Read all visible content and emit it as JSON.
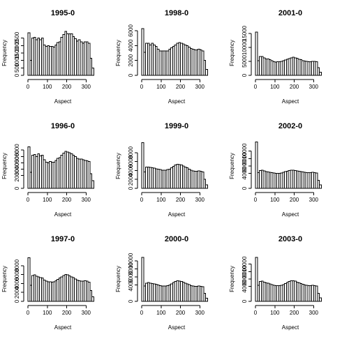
{
  "chart_data": [
    {
      "type": "bar",
      "title": "1995-0",
      "xlabel": "Aspect",
      "ylabel": "Frequency",
      "bin_width": 10,
      "xlim": [
        0,
        360
      ],
      "xticks": [
        0,
        100,
        200,
        300
      ],
      "ylim": [
        0,
        3000
      ],
      "yticks": [
        0,
        500,
        1000,
        1500,
        2000,
        2500
      ],
      "values": [
        2850,
        1000,
        2500,
        2550,
        2400,
        2500,
        2400,
        2500,
        2050,
        1950,
        2000,
        1950,
        1950,
        1900,
        2050,
        2200,
        2250,
        2550,
        2750,
        2950,
        2800,
        2800,
        2800,
        2600,
        2450,
        2300,
        2400,
        2250,
        2150,
        2250,
        2250,
        2150,
        1150,
        500
      ]
    },
    {
      "type": "bar",
      "title": "1998-0",
      "xlabel": "Aspect",
      "ylabel": "Frequency",
      "bin_width": 10,
      "xlim": [
        0,
        360
      ],
      "xticks": [
        0,
        100,
        200,
        300
      ],
      "ylim": [
        0,
        6000
      ],
      "yticks": [
        0,
        2000,
        4000,
        6000
      ],
      "values": [
        6300,
        3100,
        4300,
        4300,
        4100,
        4300,
        4100,
        3900,
        3500,
        3300,
        3300,
        3300,
        3300,
        3300,
        3500,
        3700,
        3900,
        4100,
        4300,
        4400,
        4300,
        4200,
        4100,
        4000,
        3800,
        3600,
        3500,
        3400,
        3400,
        3500,
        3400,
        3300,
        2000,
        800
      ]
    },
    {
      "type": "bar",
      "title": "2001-0",
      "xlabel": "Aspect",
      "ylabel": "Frequency",
      "bin_width": 10,
      "xlim": [
        0,
        360
      ],
      "xticks": [
        0,
        100,
        200,
        300
      ],
      "ylim": [
        0,
        16000
      ],
      "yticks": [
        0,
        5000,
        10000,
        15000
      ],
      "values": [
        15500,
        5200,
        6800,
        6700,
        6300,
        5900,
        5900,
        5600,
        5200,
        4900,
        4800,
        4900,
        4900,
        5000,
        5200,
        5500,
        5800,
        6000,
        6300,
        6500,
        6300,
        6100,
        5800,
        5600,
        5300,
        5100,
        5000,
        4900,
        4900,
        5000,
        5000,
        4900,
        2800,
        1100
      ]
    },
    {
      "type": "bar",
      "title": "1996-0",
      "xlabel": "Aspect",
      "ylabel": "Frequency",
      "bin_width": 10,
      "xlim": [
        0,
        360
      ],
      "xticks": [
        0,
        100,
        200,
        300
      ],
      "ylim": [
        0,
        7000
      ],
      "yticks": [
        0,
        2000,
        3000,
        4000,
        5000,
        6000
      ],
      "values": [
        6500,
        2500,
        5200,
        5300,
        5000,
        5400,
        5100,
        5200,
        4500,
        4100,
        4000,
        4200,
        4100,
        4100,
        4400,
        4700,
        4800,
        5200,
        5500,
        5800,
        5700,
        5600,
        5400,
        5200,
        5000,
        4700,
        4600,
        4600,
        4500,
        4400,
        4300,
        4200,
        2300,
        1200
      ]
    },
    {
      "type": "bar",
      "title": "1999-0",
      "xlabel": "Aspect",
      "ylabel": "Frequency",
      "bin_width": 10,
      "xlim": [
        0,
        360
      ],
      "xticks": [
        0,
        100,
        200,
        300
      ],
      "ylim": [
        0,
        10000
      ],
      "yticks": [
        0,
        2000,
        4000,
        6000,
        8000
      ],
      "values": [
        10200,
        3700,
        4800,
        4800,
        4700,
        4600,
        4500,
        4400,
        4300,
        4200,
        4100,
        4100,
        4100,
        4200,
        4300,
        4600,
        4900,
        5200,
        5400,
        5300,
        5200,
        5000,
        4800,
        4600,
        4300,
        4100,
        3900,
        3800,
        3800,
        3900,
        3800,
        3700,
        2000,
        800
      ]
    },
    {
      "type": "bar",
      "title": "2002-0",
      "xlabel": "Aspect",
      "ylabel": "Frequency",
      "bin_width": 10,
      "xlim": [
        0,
        360
      ],
      "xticks": [
        0,
        100,
        200,
        300
      ],
      "ylim": [
        0,
        12000
      ],
      "yticks": [
        0,
        4000,
        6000,
        8000,
        10000
      ],
      "values": [
        12500,
        4200,
        4800,
        4900,
        4700,
        4500,
        4400,
        4300,
        4200,
        4100,
        4000,
        4000,
        4000,
        4100,
        4300,
        4500,
        4600,
        4800,
        4900,
        4900,
        4800,
        4700,
        4600,
        4500,
        4400,
        4300,
        4200,
        4200,
        4200,
        4300,
        4200,
        4100,
        2200,
        900
      ]
    },
    {
      "type": "bar",
      "title": "1997-0",
      "xlabel": "Aspect",
      "ylabel": "Frequency",
      "bin_width": 10,
      "xlim": [
        0,
        360
      ],
      "xticks": [
        0,
        100,
        200,
        300
      ],
      "ylim": [
        0,
        10000
      ],
      "yticks": [
        0,
        2000,
        4000,
        6000,
        8000
      ],
      "values": [
        9800,
        3600,
        5800,
        5900,
        5600,
        5500,
        5300,
        5200,
        4800,
        4500,
        4400,
        4400,
        4300,
        4400,
        4600,
        4900,
        5200,
        5500,
        5800,
        6000,
        5900,
        5700,
        5500,
        5300,
        5000,
        4800,
        4600,
        4500,
        4500,
        4600,
        4500,
        4300,
        2400,
        1000
      ]
    },
    {
      "type": "bar",
      "title": "2000-0",
      "xlabel": "Aspect",
      "ylabel": "Frequency",
      "bin_width": 10,
      "xlim": [
        0,
        360
      ],
      "xticks": [
        0,
        100,
        200,
        300
      ],
      "ylim": [
        0,
        11000
      ],
      "yticks": [
        0,
        4000,
        6000,
        8000,
        10000
      ],
      "values": [
        10800,
        3800,
        4500,
        4600,
        4500,
        4400,
        4300,
        4200,
        4000,
        3900,
        3800,
        3800,
        3800,
        3900,
        4000,
        4300,
        4600,
        4900,
        5100,
        5000,
        4900,
        4700,
        4500,
        4300,
        4100,
        3900,
        3800,
        3700,
        3700,
        3800,
        3700,
        3600,
        2000,
        800
      ]
    },
    {
      "type": "bar",
      "title": "2003-0",
      "xlabel": "Aspect",
      "ylabel": "Frequency",
      "bin_width": 10,
      "xlim": [
        0,
        360
      ],
      "xticks": [
        0,
        100,
        200,
        300
      ],
      "ylim": [
        0,
        12000
      ],
      "yticks": [
        0,
        4000,
        6000,
        8000,
        10000
      ],
      "values": [
        11800,
        4300,
        5300,
        5400,
        5200,
        5000,
        4900,
        4700,
        4500,
        4300,
        4200,
        4200,
        4200,
        4300,
        4500,
        4800,
        5100,
        5300,
        5500,
        5500,
        5400,
        5200,
        5000,
        4800,
        4600,
        4400,
        4300,
        4200,
        4200,
        4300,
        4200,
        4100,
        2200,
        900
      ]
    }
  ]
}
